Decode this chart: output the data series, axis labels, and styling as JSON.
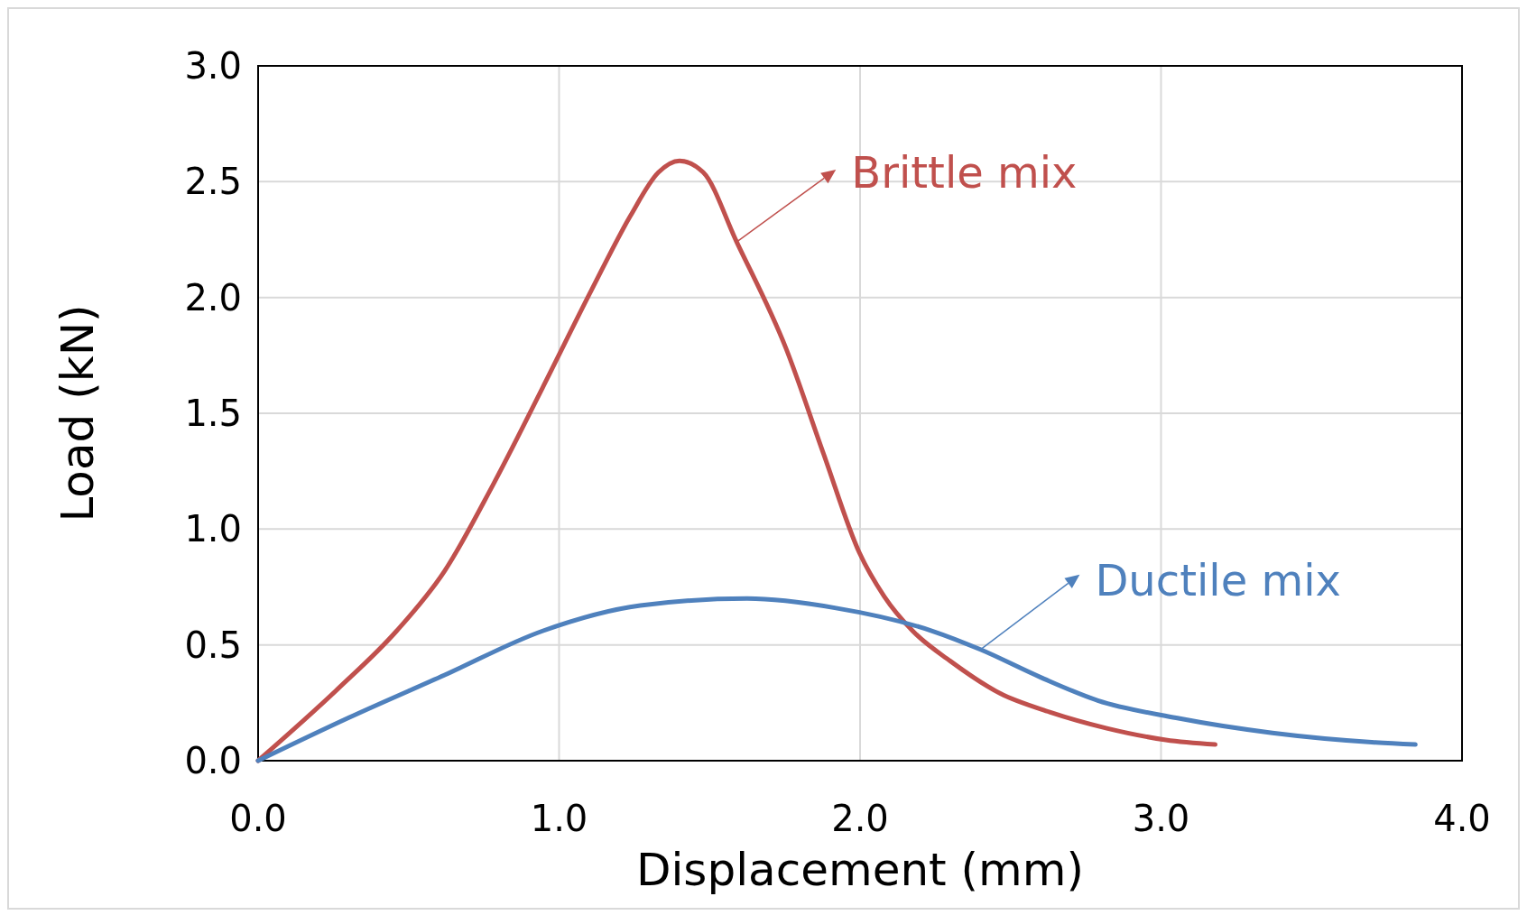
{
  "chart_data": {
    "type": "line",
    "xlabel": "Displacement (mm)",
    "ylabel": "Load (kN)",
    "xlim": [
      0,
      4
    ],
    "ylim": [
      0,
      3
    ],
    "xticks": [
      {
        "value": 0,
        "label": "0.0"
      },
      {
        "value": 1,
        "label": "1.0"
      },
      {
        "value": 2,
        "label": "2.0"
      },
      {
        "value": 3,
        "label": "3.0"
      },
      {
        "value": 4,
        "label": "4.0"
      }
    ],
    "yticks": [
      {
        "value": 0,
        "label": "0.0"
      },
      {
        "value": 0.5,
        "label": "0.5"
      },
      {
        "value": 1,
        "label": "1.0"
      },
      {
        "value": 1.5,
        "label": "1.5"
      },
      {
        "value": 2,
        "label": "2.0"
      },
      {
        "value": 2.5,
        "label": "2.5"
      },
      {
        "value": 3,
        "label": "3.0"
      }
    ],
    "grid": true,
    "legend": "right",
    "marker": "none",
    "line_style": "solid",
    "series": [
      {
        "name": "Brittle mix",
        "color": "#c0504d",
        "x": [
          0,
          0.265,
          0.46,
          0.62,
          0.78,
          0.945,
          1.107,
          1.236,
          1.33,
          1.4,
          1.479,
          1.59,
          1.754,
          1.88,
          1.997,
          2.08,
          2.175,
          2.3,
          2.466,
          2.63,
          2.82,
          3.016,
          3.18
        ],
        "values": [
          0,
          0.31,
          0.56,
          0.82,
          1.19,
          1.61,
          2.03,
          2.35,
          2.54,
          2.59,
          2.54,
          2.24,
          1.78,
          1.32,
          0.9,
          0.71,
          0.56,
          0.43,
          0.29,
          0.21,
          0.14,
          0.09,
          0.07
        ]
      },
      {
        "name": "Ductile mix",
        "color": "#4f81bd",
        "x": [
          0,
          0.3,
          0.62,
          0.945,
          1.27,
          1.625,
          1.916,
          2.24,
          2.4,
          2.6,
          2.79,
          3.05,
          3.37,
          3.7,
          3.845
        ],
        "values": [
          0,
          0.185,
          0.37,
          0.56,
          0.67,
          0.7,
          0.66,
          0.56,
          0.48,
          0.36,
          0.26,
          0.185,
          0.12,
          0.08,
          0.07
        ]
      }
    ]
  }
}
